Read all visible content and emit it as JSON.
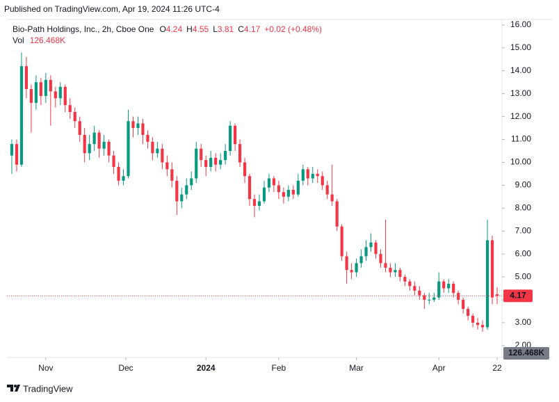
{
  "published": "Published on TradingView.com, Apr 19, 2024 11:26 UTC-4",
  "legend": {
    "name": "Bio-Path Holdings, Inc., 2h, Cboe One",
    "ohlc_labels": [
      "O",
      "H",
      "L",
      "C"
    ],
    "change": "+0.02 (+0.48%)",
    "vol_label": "Vol",
    "volume": {
      "value": 126468,
      "label": "126.468K"
    }
  },
  "footer": {
    "brand": "TradingView"
  },
  "chart_data": {
    "type": "candlestick",
    "up_color": "#089981",
    "down_color": "#f23645",
    "grid": false,
    "xlim": [
      -1,
      101
    ],
    "ylim": [
      1.48,
      16.24
    ],
    "xticks": [
      {
        "value": 7,
        "label": "Nov"
      },
      {
        "value": 23.5,
        "label": "Dec"
      },
      {
        "value": 40,
        "label": "2024"
      },
      {
        "value": 55,
        "label": "Feb"
      },
      {
        "value": 71,
        "label": "Mar"
      },
      {
        "value": 88,
        "label": "Apr"
      },
      {
        "value": 100,
        "label": "22"
      }
    ],
    "yticks": [
      {
        "value": 2,
        "label": "2.00"
      },
      {
        "value": 3,
        "label": "3.00"
      },
      {
        "value": 4,
        "label": "4.00"
      },
      {
        "value": 5,
        "label": "5.00"
      },
      {
        "value": 6,
        "label": "6.00"
      },
      {
        "value": 7,
        "label": "7.00"
      },
      {
        "value": 8,
        "label": "8.00"
      },
      {
        "value": 9,
        "label": "9.00"
      },
      {
        "value": 10,
        "label": "10.00"
      },
      {
        "value": 11,
        "label": "11.00"
      },
      {
        "value": 12,
        "label": "12.00"
      },
      {
        "value": 13,
        "label": "13.00"
      },
      {
        "value": 14,
        "label": "14.00"
      },
      {
        "value": 15,
        "label": "15.00"
      },
      {
        "value": 16,
        "label": "16.00"
      }
    ],
    "candles": [
      [
        10.3,
        11.0,
        9.5,
        10.8
      ],
      [
        10.8,
        11.0,
        9.6,
        9.9
      ],
      [
        9.9,
        14.8,
        9.8,
        14.2
      ],
      [
        14.2,
        14.6,
        12.8,
        13.2
      ],
      [
        13.2,
        13.4,
        11.3,
        12.6
      ],
      [
        12.6,
        13.8,
        12.3,
        13.5
      ],
      [
        13.5,
        13.7,
        12.5,
        12.9
      ],
      [
        12.9,
        13.9,
        12.6,
        13.6
      ],
      [
        13.6,
        13.8,
        11.6,
        13.1
      ],
      [
        13.1,
        13.3,
        12.4,
        12.8
      ],
      [
        12.8,
        13.5,
        12.5,
        13.3
      ],
      [
        13.3,
        13.4,
        12.2,
        12.5
      ],
      [
        12.5,
        12.8,
        11.9,
        12.2
      ],
      [
        12.2,
        12.4,
        11.5,
        11.8
      ],
      [
        11.8,
        12.0,
        10.9,
        11.2
      ],
      [
        11.2,
        11.5,
        10.0,
        10.4
      ],
      [
        10.4,
        11.2,
        10.1,
        10.8
      ],
      [
        10.8,
        11.6,
        10.5,
        11.3
      ],
      [
        11.3,
        11.4,
        10.2,
        10.6
      ],
      [
        10.6,
        11.2,
        10.3,
        10.9
      ],
      [
        10.9,
        11.0,
        10.0,
        10.3
      ],
      [
        10.3,
        10.5,
        9.5,
        9.8
      ],
      [
        9.8,
        10.0,
        9.0,
        9.2
      ],
      [
        9.2,
        9.7,
        9.0,
        9.4
      ],
      [
        9.4,
        12.3,
        9.3,
        11.8
      ],
      [
        11.8,
        12.0,
        11.1,
        11.5
      ],
      [
        11.5,
        12.0,
        11.2,
        11.7
      ],
      [
        11.7,
        11.9,
        10.8,
        11.2
      ],
      [
        11.2,
        11.4,
        10.6,
        10.9
      ],
      [
        10.9,
        11.1,
        10.1,
        10.4
      ],
      [
        10.4,
        10.9,
        10.2,
        10.6
      ],
      [
        10.6,
        10.8,
        9.7,
        10.0
      ],
      [
        10.0,
        10.3,
        9.4,
        9.7
      ],
      [
        9.7,
        10.0,
        8.9,
        9.2
      ],
      [
        9.2,
        9.4,
        7.7,
        8.3
      ],
      [
        8.3,
        8.9,
        8.0,
        8.6
      ],
      [
        8.6,
        9.3,
        8.4,
        9.0
      ],
      [
        9.0,
        9.6,
        8.8,
        9.3
      ],
      [
        9.3,
        10.9,
        9.1,
        10.6
      ],
      [
        10.6,
        10.8,
        9.8,
        10.1
      ],
      [
        10.1,
        10.3,
        9.4,
        9.8
      ],
      [
        9.8,
        10.5,
        9.6,
        10.2
      ],
      [
        10.2,
        10.4,
        9.6,
        9.9
      ],
      [
        9.9,
        10.4,
        9.7,
        10.1
      ],
      [
        10.1,
        10.8,
        9.9,
        10.5
      ],
      [
        10.5,
        11.8,
        10.3,
        11.6
      ],
      [
        11.6,
        11.7,
        10.5,
        10.8
      ],
      [
        10.8,
        11.0,
        9.8,
        10.0
      ],
      [
        10.0,
        10.2,
        9.1,
        9.4
      ],
      [
        9.4,
        9.5,
        8.1,
        8.4
      ],
      [
        8.4,
        8.6,
        7.6,
        8.1
      ],
      [
        8.1,
        8.6,
        7.9,
        8.3
      ],
      [
        8.3,
        9.2,
        8.2,
        8.9
      ],
      [
        8.9,
        9.5,
        8.7,
        9.3
      ],
      [
        9.3,
        9.4,
        8.7,
        9.0
      ],
      [
        9.0,
        9.2,
        8.4,
        8.7
      ],
      [
        8.7,
        8.9,
        8.2,
        8.5
      ],
      [
        8.5,
        9.0,
        8.3,
        8.8
      ],
      [
        8.8,
        9.0,
        8.4,
        8.6
      ],
      [
        8.6,
        9.5,
        8.5,
        9.2
      ],
      [
        9.2,
        9.9,
        9.0,
        9.7
      ],
      [
        9.7,
        9.8,
        9.0,
        9.3
      ],
      [
        9.3,
        9.8,
        9.1,
        9.5
      ],
      [
        9.5,
        9.7,
        9.1,
        9.4
      ],
      [
        9.4,
        9.6,
        8.8,
        9.0
      ],
      [
        9.0,
        9.2,
        8.4,
        8.6
      ],
      [
        8.6,
        9.9,
        8.1,
        8.3
      ],
      [
        8.3,
        8.4,
        7.0,
        7.2
      ],
      [
        7.2,
        7.3,
        5.7,
        5.9
      ],
      [
        5.9,
        6.1,
        4.7,
        5.3
      ],
      [
        5.3,
        5.6,
        4.9,
        5.2
      ],
      [
        5.2,
        5.8,
        5.0,
        5.6
      ],
      [
        5.6,
        6.2,
        5.4,
        5.9
      ],
      [
        5.9,
        6.6,
        5.7,
        6.3
      ],
      [
        6.3,
        6.9,
        6.1,
        6.5
      ],
      [
        6.5,
        6.6,
        5.8,
        6.0
      ],
      [
        6.0,
        6.2,
        5.4,
        5.6
      ],
      [
        5.6,
        7.5,
        5.2,
        5.4
      ],
      [
        5.4,
        5.6,
        5.0,
        5.2
      ],
      [
        5.2,
        5.6,
        5.0,
        5.3
      ],
      [
        5.3,
        5.4,
        4.8,
        5.0
      ],
      [
        5.0,
        5.1,
        4.6,
        4.8
      ],
      [
        4.8,
        4.9,
        4.4,
        4.6
      ],
      [
        4.6,
        4.8,
        4.2,
        4.4
      ],
      [
        4.4,
        4.6,
        4.0,
        4.2
      ],
      [
        4.2,
        4.3,
        3.6,
        4.0
      ],
      [
        4.0,
        4.3,
        3.8,
        4.0
      ],
      [
        4.0,
        4.3,
        3.9,
        4.1
      ],
      [
        4.1,
        5.2,
        4.0,
        4.8
      ],
      [
        4.8,
        4.9,
        4.3,
        4.5
      ],
      [
        4.5,
        4.9,
        4.3,
        4.7
      ],
      [
        4.7,
        4.8,
        4.1,
        4.3
      ],
      [
        4.3,
        4.4,
        3.8,
        4.0
      ],
      [
        4.0,
        4.1,
        3.4,
        3.6
      ],
      [
        3.6,
        3.7,
        3.1,
        3.3
      ],
      [
        3.3,
        3.4,
        2.8,
        3.0
      ],
      [
        3.0,
        3.2,
        2.7,
        2.9
      ],
      [
        2.9,
        3.1,
        2.6,
        2.8
      ],
      [
        2.8,
        7.5,
        2.7,
        6.6
      ],
      [
        6.6,
        6.8,
        3.8,
        4.1
      ],
      [
        4.24,
        4.55,
        3.81,
        4.17
      ]
    ]
  }
}
